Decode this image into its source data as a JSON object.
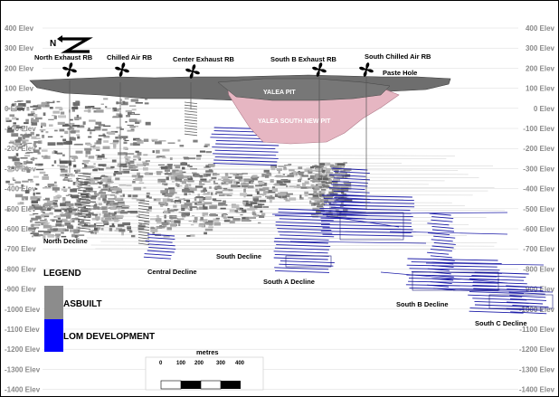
{
  "elevation_labels": [
    "400 Elev",
    "300 Elev",
    "200 Elev",
    "100 Elev",
    "0 Elev",
    "-100 Elev",
    "-200 Elev",
    "-300 Elev",
    "-400 Elev",
    "-500 Elev",
    "-600 Elev",
    "-700 Elev",
    "-800 Elev",
    "-900 Elev",
    "-1000 Elev",
    "-1100 Elev",
    "-1200 Elev",
    "-1300 Elev",
    "-1400 Elev"
  ],
  "north_arrow": {
    "letter": "N"
  },
  "raise_bores": [
    "North Exhaust RB",
    "Chilled Air RB",
    "Center Exhaust RB",
    "South B Exhaust RB",
    "South Chilled Air RB"
  ],
  "paste_hole": "Paste Hole",
  "pits": [
    "YALEA PIT",
    "YALEA SOUTH NEW PIT"
  ],
  "declines": [
    "North Decline",
    "Central Decline",
    "South  Decline",
    "South A Decline",
    "South B Decline",
    "South C Decline"
  ],
  "legend": {
    "title": "LEGEND",
    "items": [
      {
        "label": "ASBUILT",
        "color": "#8c8c8c"
      },
      {
        "label": "LOM DEVELOPMENT",
        "color": "#0000ff"
      }
    ]
  },
  "scale_bar": {
    "unit": "metres",
    "ticks": [
      "0",
      "100",
      "200",
      "300",
      "400"
    ]
  },
  "colors": {
    "asbuilt": "#8c8c8c",
    "lom": "#1a1aa8",
    "pit_grey": "#6f6f6f",
    "pit_pink": "#e8b8c4"
  }
}
